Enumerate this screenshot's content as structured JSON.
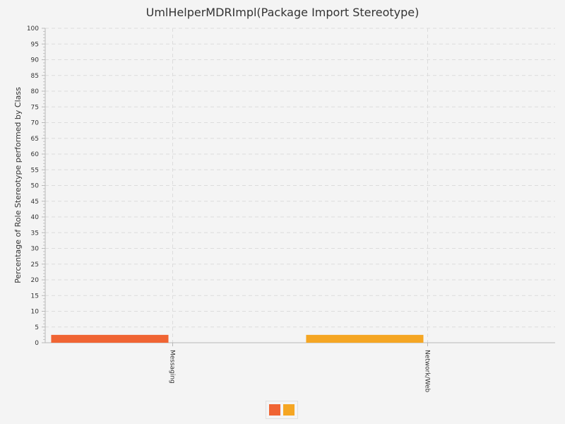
{
  "chart_data": {
    "type": "bar",
    "title": "UmlHelperMDRImpl(Package Import Stereotype)",
    "ylabel": "Percentage of Role Stereotype performed by Class",
    "xlabel": "",
    "ylim": [
      0,
      100
    ],
    "yticks": [
      0,
      5,
      10,
      15,
      20,
      25,
      30,
      35,
      40,
      45,
      50,
      55,
      60,
      65,
      70,
      75,
      80,
      85,
      90,
      95,
      100
    ],
    "categories": [
      "Messaging",
      "Network/Web"
    ],
    "values": [
      2.5,
      2.5
    ],
    "colors": [
      "#f06433",
      "#f5a623"
    ],
    "grid": true,
    "legend_position": "bottom-center"
  }
}
